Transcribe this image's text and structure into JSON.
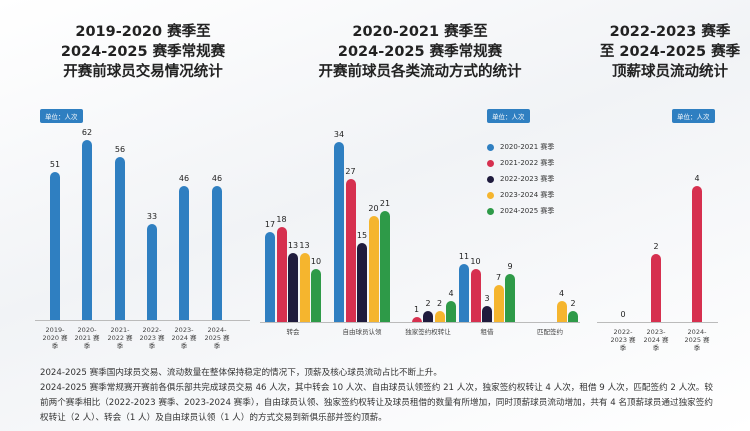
{
  "chart_data": [
    {
      "type": "bar",
      "title": [
        "2019-2020 赛季至",
        "2024-2025 赛季常规赛",
        "开赛前球员交易情况统计"
      ],
      "unit": "单位：人次",
      "categories": [
        "2019-2020 赛季",
        "2020-2021 赛季",
        "2021-2022 赛季",
        "2022-2023 赛季",
        "2023-2024 赛季",
        "2024-2025 赛季"
      ],
      "values": [
        51,
        62,
        56,
        33,
        46,
        46
      ],
      "color": "#2f7fc1"
    },
    {
      "type": "grouped-bar",
      "title": [
        "2020-2021 赛季至",
        "2024-2025 赛季常规赛",
        "开赛前球员各类流动方式的统计"
      ],
      "unit": "单位：人次",
      "categories": [
        "转会",
        "自由球员认领",
        "独家签约权转让",
        "租借",
        "匹配签约"
      ],
      "series": [
        {
          "name": "2020-2021 赛季",
          "color": "#2f7fc1",
          "values": [
            17,
            34,
            null,
            11,
            null
          ]
        },
        {
          "name": "2021-2022 赛季",
          "color": "#d6304f",
          "values": [
            18,
            27,
            1,
            10,
            null
          ]
        },
        {
          "name": "2022-2023 赛季",
          "color": "#1f1b3d",
          "values": [
            13,
            15,
            2,
            3,
            null
          ]
        },
        {
          "name": "2023-2024 赛季",
          "color": "#f5b52e",
          "values": [
            13,
            20,
            2,
            7,
            4
          ]
        },
        {
          "name": "2024-2025 赛季",
          "color": "#2e9a48",
          "values": [
            10,
            21,
            4,
            9,
            2
          ]
        }
      ]
    },
    {
      "type": "bar",
      "title": [
        "2022-2023 赛季",
        "至 2024-2025 赛季",
        "顶薪球员流动统计"
      ],
      "unit": "单位：人次",
      "categories": [
        "2022-2023 赛季",
        "2023-2024 赛季",
        "2024-2025 赛季"
      ],
      "values": [
        0,
        2,
        4
      ],
      "color": "#d6304f"
    }
  ],
  "footer": [
    "2024-2025 赛季国内球员交易、流动数量在整体保持稳定的情况下，顶薪及核心球员流动占比不断上升。",
    "2024-2025 赛季常规赛开赛前各俱乐部共完成球员交易 46 人次，其中转会 10 人次、自由球员认领签约 21 人次，独家签约权转让 4 人次，租借 9 人次，匹配签约 2 人次。较前两个赛季相比（2022-2023 赛季、2023-2024 赛季），自由球员认领、独家签约权转让及球员租借的数量有所增加，同时顶薪球员流动增加，共有 4 名顶薪球员通过独家签约权转让（2 人）、转会（1 人）及自由球员认领（1 人）的方式交易到新俱乐部并签约顶薪。"
  ]
}
